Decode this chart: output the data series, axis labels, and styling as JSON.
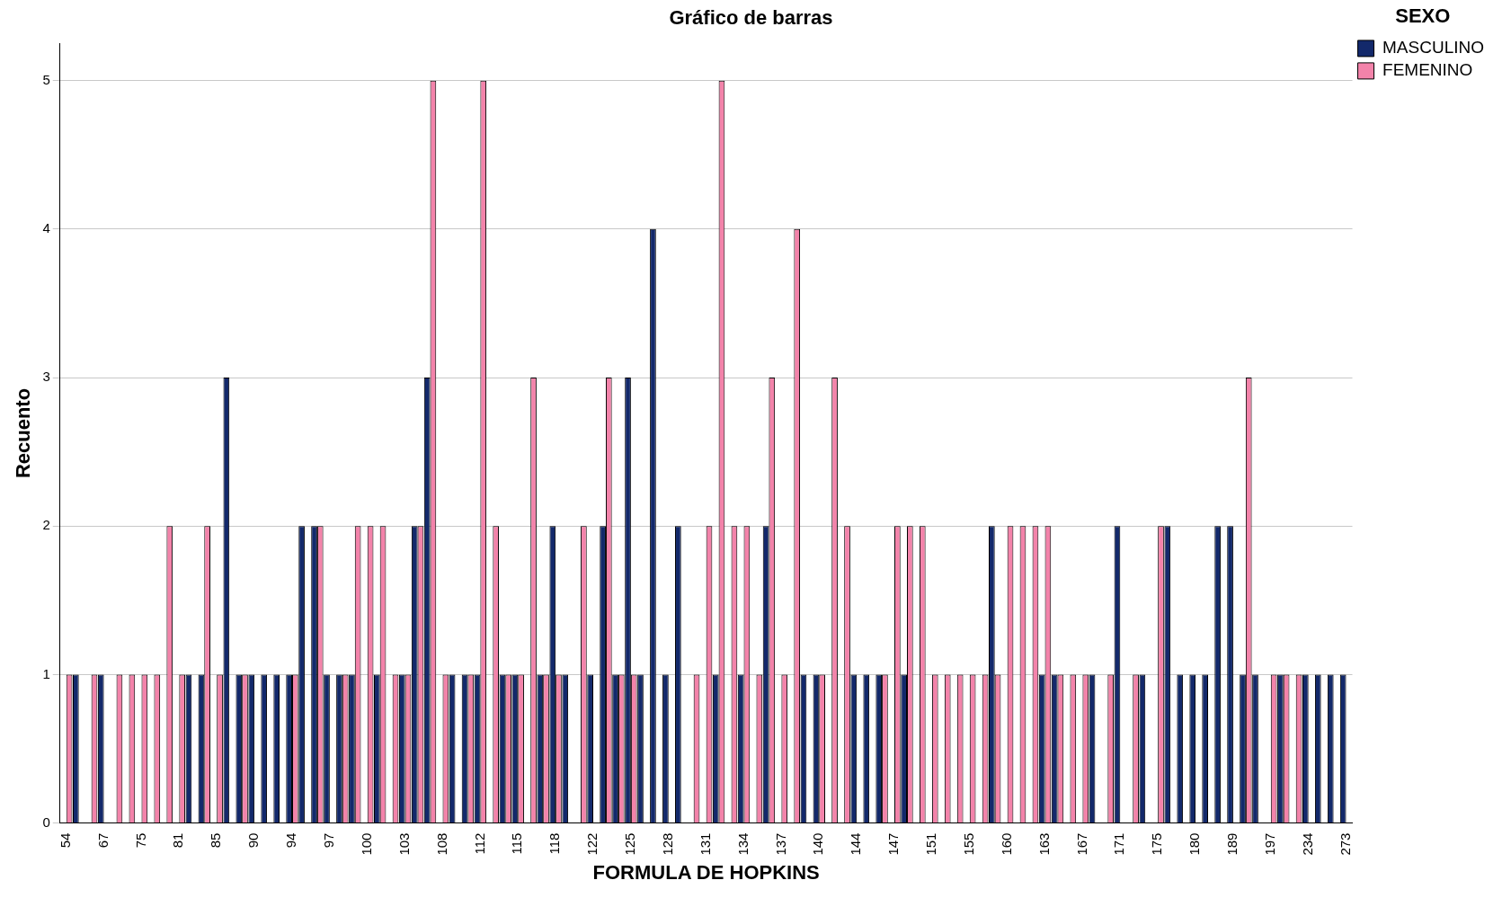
{
  "chart_data": {
    "type": "bar",
    "title": "Gráfico de barras",
    "xlabel": "FORMULA DE HOPKINS",
    "ylabel": "Recuento",
    "legend_title": "SEXO",
    "legend": "top right",
    "grid": "y",
    "ylim": [
      0,
      5.25
    ],
    "yticks": [
      0,
      1,
      2,
      3,
      4,
      5
    ],
    "categories": [
      "54",
      null,
      null,
      "67",
      null,
      null,
      "75",
      null,
      null,
      "81",
      null,
      null,
      "85",
      null,
      null,
      "90",
      null,
      null,
      "94",
      null,
      null,
      "97",
      null,
      null,
      "100",
      null,
      null,
      "103",
      null,
      null,
      "108",
      null,
      null,
      "112",
      null,
      null,
      "115",
      null,
      null,
      "118",
      null,
      null,
      "122",
      null,
      null,
      "125",
      null,
      null,
      "128",
      null,
      null,
      "131",
      null,
      null,
      "134",
      null,
      null,
      "137",
      null,
      null,
      "140",
      null,
      null,
      "144",
      null,
      null,
      "147",
      null,
      null,
      "151",
      null,
      null,
      "155",
      null,
      null,
      "160",
      null,
      null,
      "163",
      null,
      null,
      "167",
      null,
      null,
      "171",
      null,
      null,
      "175",
      null,
      null,
      "180",
      null,
      null,
      "189",
      null,
      null,
      "197",
      null,
      null,
      "234",
      null,
      null,
      "273"
    ],
    "series": [
      {
        "name": "MASCULINO",
        "color": "#13296b",
        "values": [
          0,
          1,
          0,
          1,
          0,
          0,
          0,
          0,
          0,
          0,
          1,
          1,
          0,
          3,
          1,
          1,
          1,
          1,
          1,
          2,
          2,
          1,
          1,
          1,
          0,
          1,
          0,
          1,
          2,
          3,
          0,
          1,
          1,
          1,
          0,
          1,
          1,
          0,
          1,
          2,
          1,
          0,
          1,
          2,
          1,
          3,
          1,
          4,
          1,
          2,
          0,
          0,
          1,
          0,
          1,
          0,
          2,
          0,
          0,
          1,
          1,
          0,
          0,
          1,
          1,
          1,
          0,
          1,
          0,
          0,
          0,
          0,
          0,
          0,
          2,
          0,
          0,
          0,
          1,
          1,
          0,
          0,
          1,
          0,
          2,
          0,
          1,
          0,
          2,
          1,
          1,
          1,
          2,
          2,
          1,
          1,
          0,
          1,
          0,
          1,
          1,
          1,
          1
        ]
      },
      {
        "name": "FEMENINO",
        "color": "#f383aa",
        "values": [
          1,
          0,
          1,
          0,
          1,
          1,
          1,
          1,
          2,
          1,
          0,
          2,
          1,
          0,
          1,
          0,
          0,
          0,
          1,
          0,
          2,
          0,
          1,
          2,
          2,
          2,
          1,
          1,
          2,
          5,
          1,
          0,
          1,
          5,
          2,
          1,
          1,
          3,
          1,
          1,
          0,
          2,
          0,
          3,
          1,
          1,
          0,
          0,
          0,
          0,
          1,
          2,
          5,
          2,
          2,
          1,
          3,
          1,
          4,
          0,
          1,
          3,
          2,
          0,
          0,
          1,
          2,
          2,
          2,
          1,
          1,
          1,
          1,
          1,
          1,
          2,
          2,
          2,
          2,
          1,
          1,
          1,
          0,
          1,
          0,
          1,
          0,
          2,
          0,
          0,
          0,
          0,
          0,
          0,
          3,
          0,
          1,
          1,
          1,
          0,
          0,
          0,
          0
        ]
      }
    ]
  }
}
